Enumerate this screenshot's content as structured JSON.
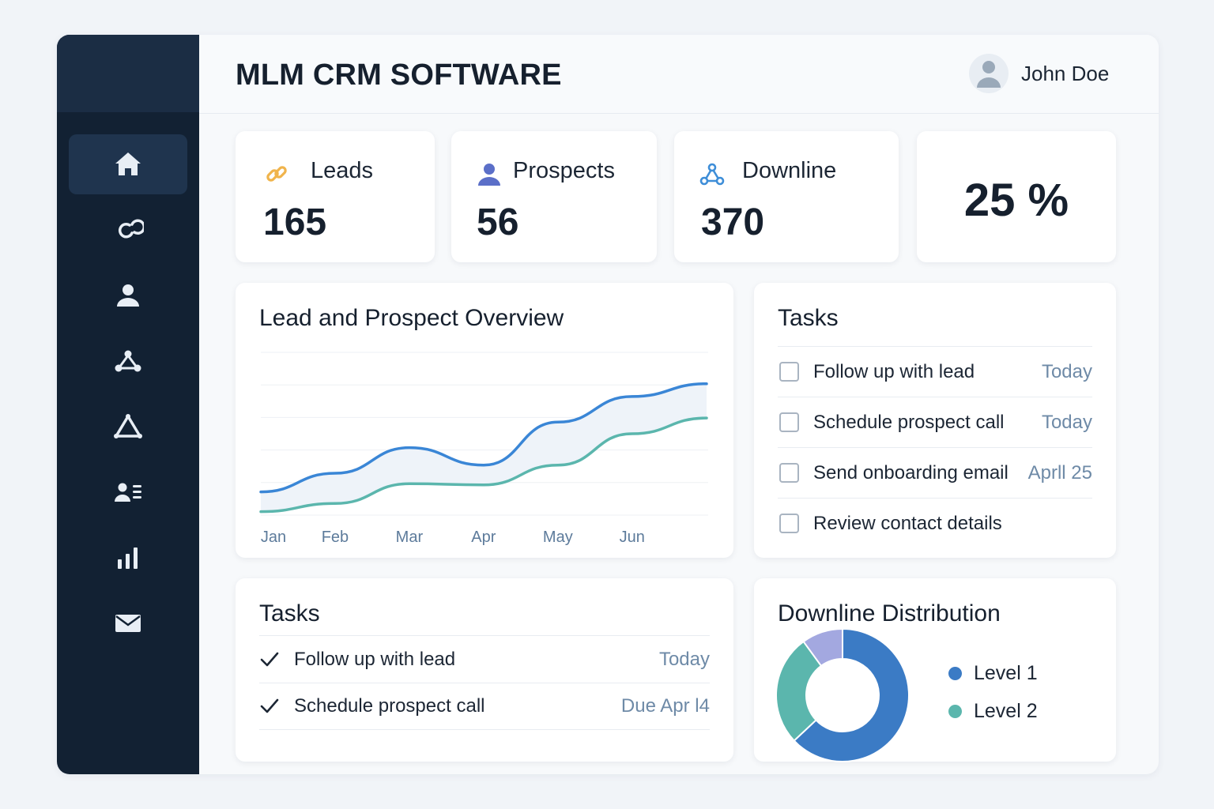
{
  "header": {
    "title": "MLM CRM SOFTWARE",
    "user_name": "John Doe"
  },
  "sidebar": {
    "items": [
      {
        "icon": "home-icon",
        "active": true
      },
      {
        "icon": "link-icon"
      },
      {
        "icon": "user-icon"
      },
      {
        "icon": "network-icon"
      },
      {
        "icon": "triangle-icon"
      },
      {
        "icon": "contact-list-icon"
      },
      {
        "icon": "bar-chart-icon"
      },
      {
        "icon": "mail-icon"
      }
    ]
  },
  "stats": {
    "leads": {
      "label": "Leads",
      "value": "165",
      "icon": "link-icon"
    },
    "prospects": {
      "label": "Prospects",
      "value": "56",
      "icon": "user-icon"
    },
    "downline": {
      "label": "Downline",
      "value": "370",
      "icon": "network-icon"
    },
    "percent": {
      "value": "25 %"
    }
  },
  "overview": {
    "title": "Lead and Prospect Overview"
  },
  "tasks_checklist": {
    "title": "Tasks",
    "items": [
      {
        "text": "Follow up with lead",
        "due": "Today"
      },
      {
        "text": "Schedule prospect call",
        "due": "Today"
      },
      {
        "text": "Send onboarding email",
        "due": "Aprll 25"
      },
      {
        "text": "Review contact details",
        "due": ""
      }
    ]
  },
  "tasks_done": {
    "title": "Tasks",
    "items": [
      {
        "text": "Follow up with lead",
        "due": "Today"
      },
      {
        "text": "Schedule prospect call",
        "due": "Due Apr l4"
      }
    ]
  },
  "distribution": {
    "title": "Downline Distribution"
  },
  "colors": {
    "sidebar": "#122133",
    "series_blue": "#3a86d6",
    "series_teal": "#5bb6ad",
    "slice_lavender": "#a3a8e0"
  },
  "chart_data": [
    {
      "type": "line",
      "title": "Lead and Prospect Overview",
      "categories": [
        "Jan",
        "Feb",
        "Mar",
        "Apr",
        "May",
        "Jun"
      ],
      "series": [
        {
          "values": [
            20,
            36,
            58,
            43,
            80,
            102
          ],
          "color": "#3a86d6"
        },
        {
          "values": [
            3,
            10,
            27,
            26,
            43,
            70
          ],
          "color": "#5bb6ad"
        }
      ],
      "ylim": [
        0,
        140
      ],
      "grid": true,
      "xlabel": "",
      "ylabel": ""
    },
    {
      "type": "pie",
      "title": "Downline Distribution",
      "donut": true,
      "slices": [
        {
          "label": "Level 1",
          "value": 63,
          "color": "#3b7bc5"
        },
        {
          "label": "Level 2",
          "value": 27,
          "color": "#5bb6ad"
        },
        {
          "label": "",
          "value": 10,
          "color": "#a3a8e0"
        }
      ],
      "legend": "right"
    }
  ]
}
